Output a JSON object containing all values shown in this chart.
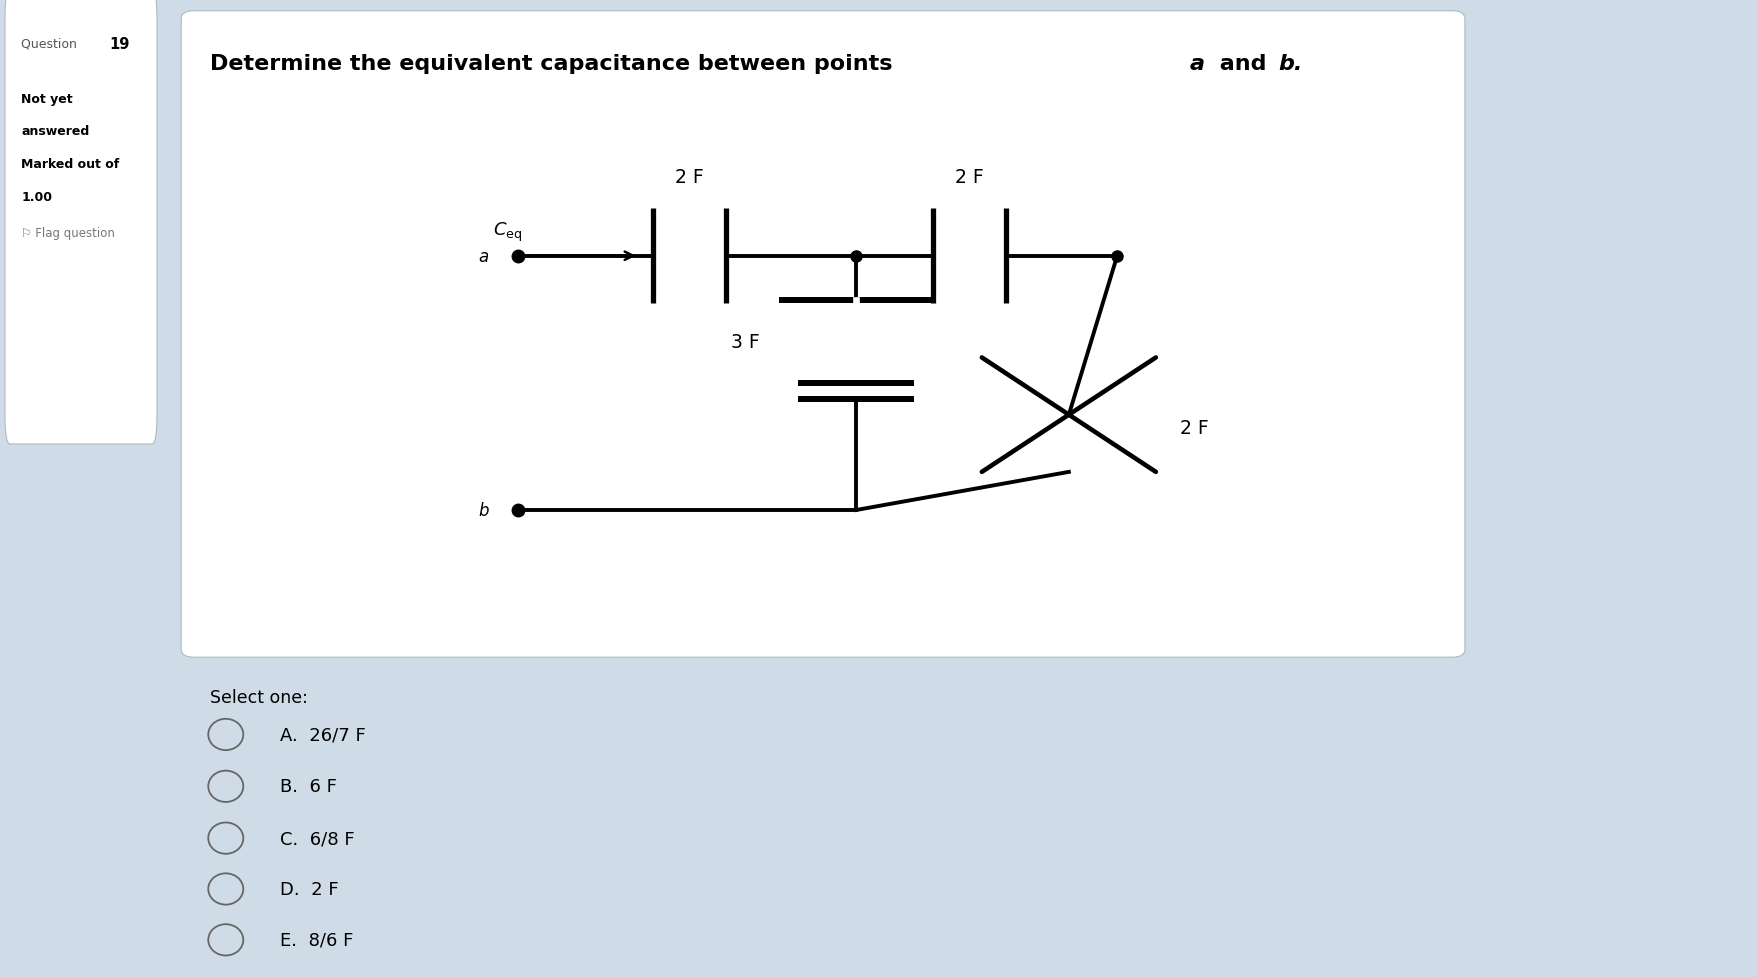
{
  "page_bg": "#cfdce8",
  "left_panel_bg": "#ffffff",
  "main_bg": "#cfdce8",
  "circuit_box_bg": "#ffffff",
  "title_normal": "Determine the equivalent capacitance between points ",
  "title_a": "a",
  "title_and": " and ",
  "title_b": "b.",
  "question_label": "Question",
  "question_number": "19",
  "not_yet": "Not yet",
  "answered": "answered",
  "marked_out": "Marked out of",
  "marked_val": "1.00",
  "flag_text": "Flag question",
  "select_one": "Select one:",
  "options": [
    {
      "label": "A.",
      "text": "26/7 F"
    },
    {
      "label": "B.",
      "text": "6 F"
    },
    {
      "label": "C.",
      "text": "6/8 F"
    },
    {
      "label": "D.",
      "text": "2 F"
    },
    {
      "label": "E.",
      "text": "8/6 F"
    }
  ]
}
